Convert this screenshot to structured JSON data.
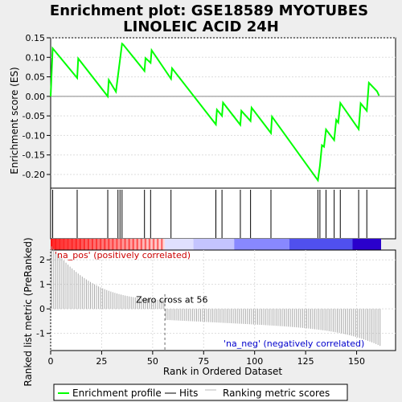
{
  "chart_data": {
    "type": "line",
    "title_line1": "Enrichment plot: GSE18589 MYOTUBES",
    "title_line2": "LINOLEIC ACID 24H",
    "n_genes": 162,
    "top_panel": {
      "ylabel": "Enrichment score (ES)",
      "ylim": [
        -0.235,
        0.15
      ],
      "yticks": [
        "0.15",
        "0.10",
        "0.05",
        "0.00",
        "-0.05",
        "-0.10",
        "-0.15",
        "-0.20"
      ],
      "ytick_values": [
        0.15,
        0.1,
        0.05,
        0.0,
        -0.05,
        -0.1,
        -0.15,
        -0.2
      ],
      "series": [
        {
          "name": "Enrichment profile",
          "color": "#00ff00",
          "x": [
            0,
            1,
            13,
            13.5,
            28,
            28.5,
            32,
            35,
            35.5,
            46,
            46.5,
            49,
            49.5,
            59,
            59.5,
            81,
            81.5,
            84,
            84.5,
            93,
            93.5,
            98,
            98.5,
            108,
            108.5,
            131,
            132,
            133,
            134,
            135,
            139,
            140,
            141,
            142,
            151,
            152,
            155,
            156,
            160,
            161
          ],
          "y": [
            0.0,
            0.123,
            0.047,
            0.097,
            0.0,
            0.042,
            0.012,
            0.135,
            0.133,
            0.065,
            0.098,
            0.086,
            0.118,
            0.045,
            0.072,
            -0.072,
            -0.034,
            -0.05,
            -0.016,
            -0.073,
            -0.037,
            -0.063,
            -0.029,
            -0.094,
            -0.052,
            -0.215,
            -0.178,
            -0.125,
            -0.129,
            -0.085,
            -0.112,
            -0.06,
            -0.067,
            -0.017,
            -0.084,
            -0.018,
            -0.037,
            0.035,
            0.013,
            0.002
          ]
        }
      ]
    },
    "hits_panel": {
      "hits": [
        1,
        13,
        28,
        33,
        34,
        35,
        46,
        49,
        59,
        81,
        84,
        93,
        98,
        108,
        131,
        132,
        135,
        139,
        142,
        151,
        155
      ]
    },
    "bottom_panel": {
      "ylabel": "Ranked list metric (PreRanked)",
      "xlabel": "Rank in Ordered Dataset",
      "ylim": [
        -1.7,
        2.4
      ],
      "yticks": [
        "2",
        "1",
        "0",
        "-1"
      ],
      "ytick_values": [
        2,
        1,
        0,
        -1
      ],
      "xticks": [
        "0",
        "25",
        "50",
        "75",
        "100",
        "125",
        "150"
      ],
      "xtick_values": [
        0,
        25,
        50,
        75,
        100,
        125,
        150
      ],
      "zero_cross": 56,
      "zero_cross_label": "Zero cross at 56",
      "pos_label": "'na_pos' (positively correlated)",
      "neg_label": "'na_neg' (negatively correlated)",
      "pos_color": "#cc0000",
      "neg_color": "#0000cc",
      "metric_start": 2.25,
      "metric_end": -1.55
    },
    "legend": [
      {
        "name": "Enrichment profile",
        "color": "#00ff00"
      },
      {
        "name": "Hits",
        "color": "#000000"
      },
      {
        "name": "Ranking metric scores",
        "color": "#bbbbbb"
      }
    ]
  }
}
